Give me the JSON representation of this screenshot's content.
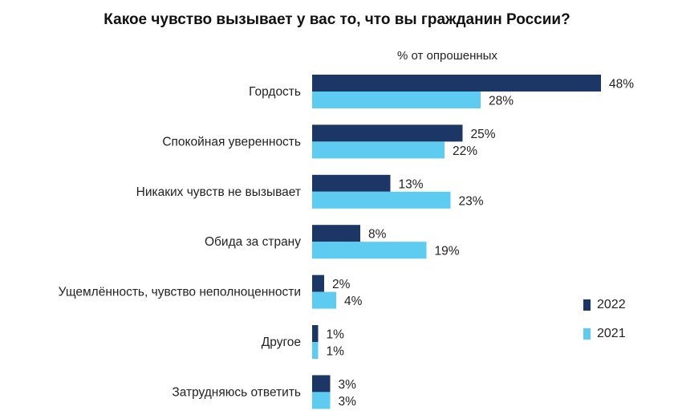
{
  "chart_data": {
    "type": "bar",
    "orientation": "horizontal",
    "title": "Какое чувство вызывает у вас то, что вы гражданин России?",
    "unit_label": "% от опрошенных",
    "categories": [
      "Гордость",
      "Спокойная уверенность",
      "Никаких чувств не вызывает",
      "Обида за страну",
      "Ущемлённость, чувство неполноценности",
      "Другое",
      "Затрудняюсь ответить"
    ],
    "series": [
      {
        "name": "2022",
        "color": "#1c3765",
        "values": [
          48,
          25,
          13,
          8,
          2,
          1,
          3
        ],
        "labels": [
          "48%",
          "25%",
          "13%",
          "8%",
          "2%",
          "1%",
          "3%"
        ]
      },
      {
        "name": "2021",
        "color": "#5ecbf0",
        "values": [
          28,
          22,
          23,
          19,
          4,
          1,
          3
        ],
        "labels": [
          "28%",
          "22%",
          "23%",
          "19%",
          "4%",
          "1%",
          "3%"
        ]
      }
    ],
    "xlim": [
      0,
      48
    ],
    "grid": false,
    "legend_position": "right"
  }
}
